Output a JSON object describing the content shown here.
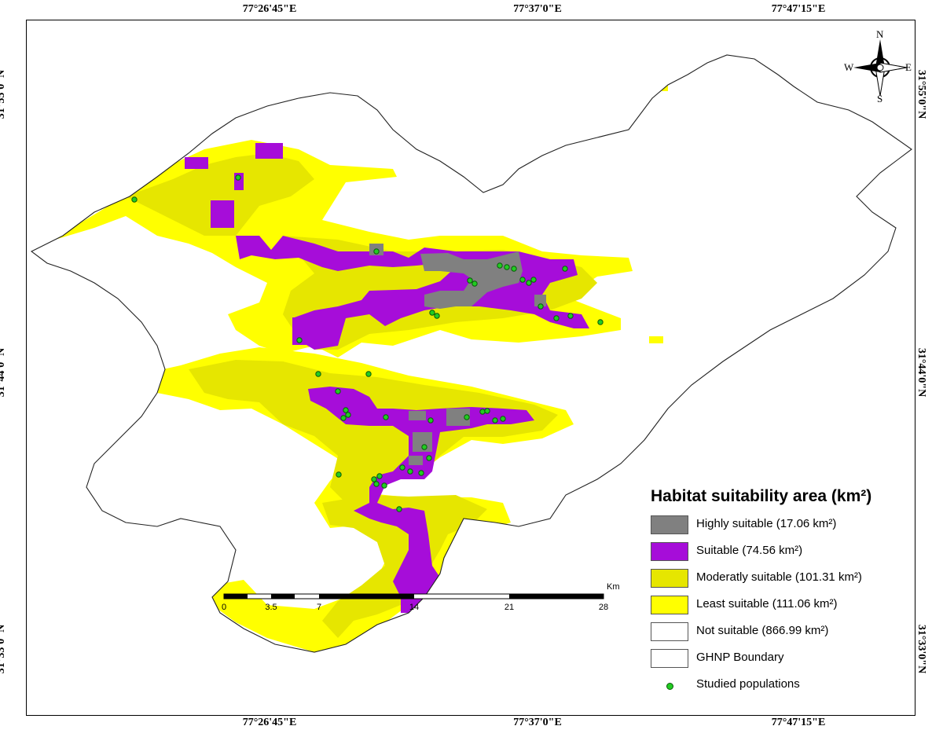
{
  "coordinates": {
    "top": [
      "77°26'45\"E",
      "77°37'0\"E",
      "77°47'15\"E"
    ],
    "bottom": [
      "77°26'45\"E",
      "77°37'0\"E",
      "77°47'15\"E"
    ],
    "left": [
      "31°55'0\"N",
      "31°44'0\"N",
      "31°33'0\"N"
    ],
    "right": [
      "31°55'0\"N",
      "31°44'0\"N",
      "31°33'0\"N"
    ]
  },
  "north_arrow": {
    "n": "N",
    "s": "S",
    "e": "E",
    "w": "W"
  },
  "scale_bar": {
    "unit": "Km",
    "ticks": [
      "0",
      "3.5",
      "7",
      "14",
      "21",
      "28"
    ]
  },
  "legend": {
    "title": "Habitat suitability area (km²)",
    "items": [
      {
        "label": "Highly suitable (17.06 km²)",
        "color": "#808080",
        "area_km2": 17.06
      },
      {
        "label": "Suitable (74.56 km²)",
        "color": "#a60dd9",
        "area_km2": 74.56
      },
      {
        "label": "Moderatly suitable (101.31 km²)",
        "color": "#e6e600",
        "area_km2": 101.31
      },
      {
        "label": "Least suitable (111.06 km²)",
        "color": "#ffff00",
        "area_km2": 111.06
      },
      {
        "label": "Not suitable (866.99 km²)",
        "color": "#ffffff",
        "area_km2": 866.99
      },
      {
        "label": "GHNP Boundary",
        "color": "#ffffff"
      }
    ],
    "points_label": "Studied populations",
    "points_color": "#22cc22"
  }
}
